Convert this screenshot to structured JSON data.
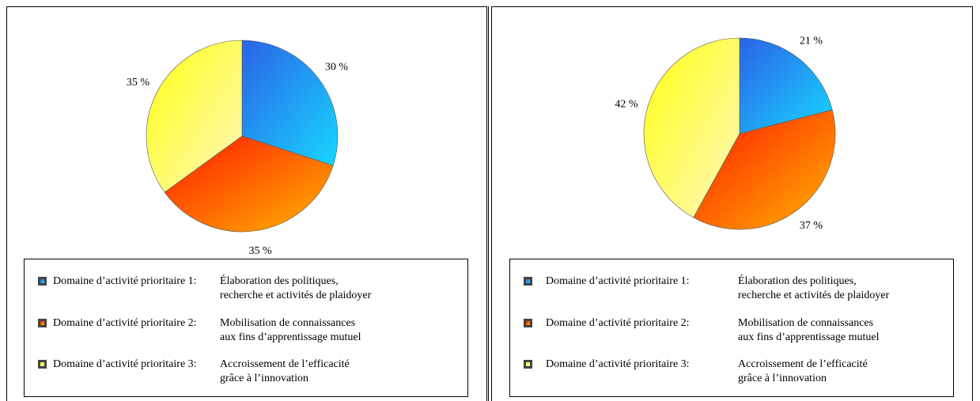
{
  "chart_data": [
    {
      "type": "pie",
      "categories": [
        "Domaine d’activité prioritaire 1:",
        "Domaine d’activité prioritaire 2:",
        "Domaine d’activité prioritaire 3:"
      ],
      "descriptions": [
        [
          "Élaboration des politiques,",
          "recherche et activités de plaidoyer"
        ],
        [
          "Mobilisation de connaissances",
          "aux fins d’apprentissage mutuel"
        ],
        [
          "Accroissement de l’efficacité",
          "grâce à l’innovation"
        ]
      ],
      "values": [
        30,
        35,
        35
      ],
      "value_labels": [
        "30 %",
        "35 %",
        "35 %"
      ],
      "colors": [
        [
          "#2a63e6",
          "#18d6ff"
        ],
        [
          "#ff1800",
          "#ffb400"
        ],
        [
          "#ffff10",
          "#fff8c0"
        ]
      ]
    },
    {
      "type": "pie",
      "categories": [
        "Domaine d’activité prioritaire 1:",
        "Domaine d’activité prioritaire 2:",
        "Domaine d’activité prioritaire 3:"
      ],
      "descriptions": [
        [
          "Élaboration des politiques,",
          "recherche et activités de plaidoyer"
        ],
        [
          "Mobilisation de connaissances",
          "aux fins d’apprentissage mutuel"
        ],
        [
          "Accroissement de l’efficacité",
          "grâce à l’innovation"
        ]
      ],
      "values": [
        21,
        37,
        42
      ],
      "value_labels": [
        "21 %",
        "37 %",
        "42 %"
      ],
      "colors": [
        [
          "#2a63e6",
          "#18d6ff"
        ],
        [
          "#ff1800",
          "#ffb400"
        ],
        [
          "#ffff10",
          "#fff8c0"
        ]
      ]
    }
  ]
}
